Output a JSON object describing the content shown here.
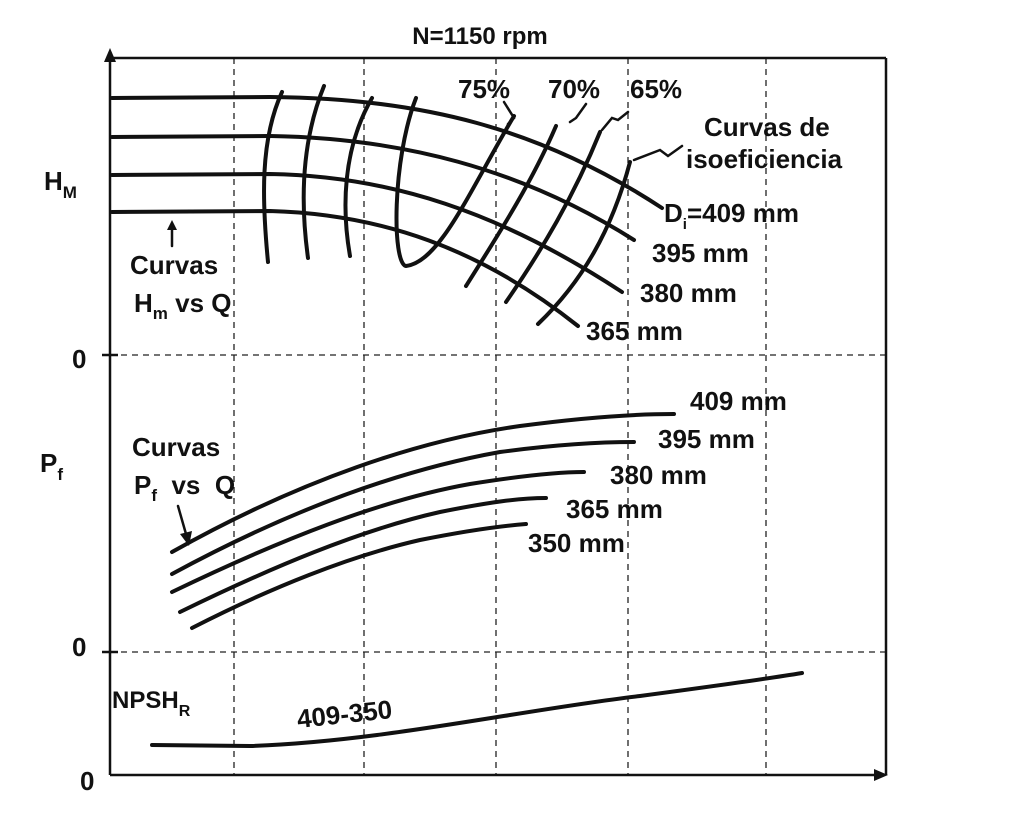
{
  "chart_data": {
    "type": "line",
    "title": "N=1150 rpm",
    "panels": {
      "head": {
        "ylabel_main": "H",
        "ylabel_sub": "M",
        "zero_label": "0",
        "note_lines": [
          "Curvas",
          "H",
          "m",
          " vs Q"
        ],
        "iso_note": [
          "Curvas de",
          "isoeficiencia"
        ],
        "efficiency_labels": [
          "75%",
          "70%",
          "65%"
        ],
        "diameter_labels": [
          {
            "main": "D",
            "sub": "i",
            "rest": "=409 mm"
          },
          {
            "main": "395 mm"
          },
          {
            "main": "380 mm"
          },
          {
            "main": "365 mm"
          }
        ]
      },
      "power": {
        "ylabel_main": "P",
        "ylabel_sub": "f",
        "zero_label": "0",
        "note_lines": [
          "Curvas",
          "P",
          "f",
          "  vs  Q"
        ],
        "diameter_labels": [
          "409 mm",
          "395 mm",
          "380 mm",
          "365 mm",
          "350 mm"
        ]
      },
      "npsh": {
        "ylabel_main": "NPSH",
        "ylabel_sub": "R",
        "zero_label": "0",
        "curve_label": "409-350"
      }
    }
  }
}
